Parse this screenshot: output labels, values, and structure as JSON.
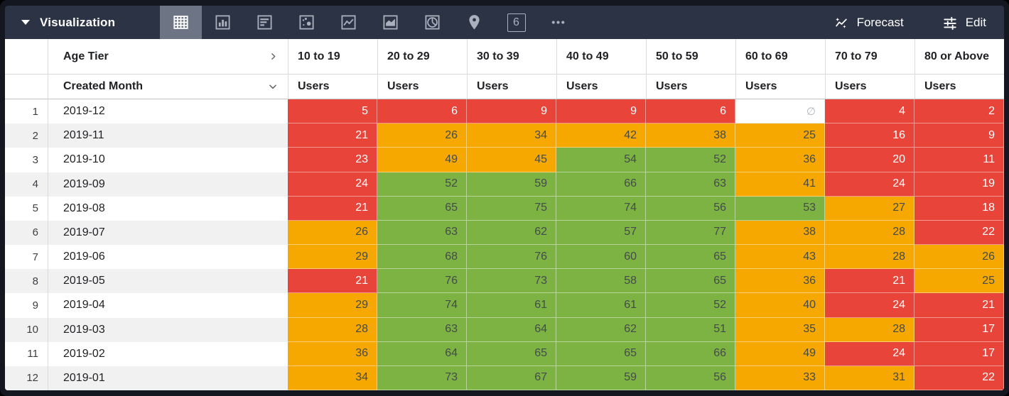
{
  "toolbar": {
    "title": "Visualization",
    "forecast_label": "Forecast",
    "edit_label": "Edit",
    "tabs": [
      {
        "icon": "table-chart",
        "selected": true
      },
      {
        "icon": "bar-chart",
        "selected": false
      },
      {
        "icon": "horizontal-bar-chart",
        "selected": false
      },
      {
        "icon": "scatter-chart",
        "selected": false
      },
      {
        "icon": "line-chart",
        "selected": false
      },
      {
        "icon": "area-chart",
        "selected": false
      },
      {
        "icon": "pie-chart",
        "selected": false
      },
      {
        "icon": "map-pin",
        "selected": false
      },
      {
        "icon": "single-value",
        "selected": false,
        "label": "6"
      },
      {
        "icon": "more-options",
        "selected": false
      }
    ]
  },
  "table": {
    "column_dimension_label": "Age Tier",
    "row_dimension_label": "Created Month",
    "measure_label": "Users",
    "null_symbol": "∅",
    "age_tiers": [
      "10 to 19",
      "20 to 29",
      "30 to 39",
      "40 to 49",
      "50 to 59",
      "60 to 69",
      "70 to 79",
      "80 or Above"
    ],
    "rows": [
      {
        "num": 1,
        "month": "2019-12",
        "values": [
          5,
          6,
          9,
          9,
          6,
          null,
          4,
          2
        ],
        "colors": [
          "r",
          "r",
          "r",
          "r",
          "r",
          "n",
          "r",
          "r"
        ]
      },
      {
        "num": 2,
        "month": "2019-11",
        "values": [
          21,
          26,
          34,
          42,
          38,
          25,
          16,
          9
        ],
        "colors": [
          "r",
          "o",
          "o",
          "o",
          "o",
          "o",
          "r",
          "r"
        ]
      },
      {
        "num": 3,
        "month": "2019-10",
        "values": [
          23,
          49,
          45,
          54,
          52,
          36,
          20,
          11
        ],
        "colors": [
          "r",
          "o",
          "o",
          "g",
          "g",
          "o",
          "r",
          "r"
        ]
      },
      {
        "num": 4,
        "month": "2019-09",
        "values": [
          24,
          52,
          59,
          66,
          63,
          41,
          24,
          19
        ],
        "colors": [
          "r",
          "g",
          "g",
          "g",
          "g",
          "o",
          "r",
          "r"
        ]
      },
      {
        "num": 5,
        "month": "2019-08",
        "values": [
          21,
          65,
          75,
          74,
          56,
          53,
          27,
          18
        ],
        "colors": [
          "r",
          "g",
          "g",
          "g",
          "g",
          "g",
          "o",
          "r"
        ]
      },
      {
        "num": 6,
        "month": "2019-07",
        "values": [
          26,
          63,
          62,
          57,
          77,
          38,
          28,
          22
        ],
        "colors": [
          "o",
          "g",
          "g",
          "g",
          "g",
          "o",
          "o",
          "r"
        ]
      },
      {
        "num": 7,
        "month": "2019-06",
        "values": [
          29,
          68,
          76,
          60,
          65,
          43,
          28,
          26
        ],
        "colors": [
          "o",
          "g",
          "g",
          "g",
          "g",
          "o",
          "o",
          "o"
        ]
      },
      {
        "num": 8,
        "month": "2019-05",
        "values": [
          21,
          76,
          73,
          58,
          65,
          36,
          21,
          25
        ],
        "colors": [
          "r",
          "g",
          "g",
          "g",
          "g",
          "o",
          "r",
          "o"
        ]
      },
      {
        "num": 9,
        "month": "2019-04",
        "values": [
          29,
          74,
          61,
          61,
          52,
          40,
          24,
          21
        ],
        "colors": [
          "o",
          "g",
          "g",
          "g",
          "g",
          "o",
          "r",
          "r"
        ]
      },
      {
        "num": 10,
        "month": "2019-03",
        "values": [
          28,
          63,
          64,
          62,
          51,
          35,
          28,
          17
        ],
        "colors": [
          "o",
          "g",
          "g",
          "g",
          "g",
          "o",
          "o",
          "r"
        ]
      },
      {
        "num": 11,
        "month": "2019-02",
        "values": [
          36,
          64,
          65,
          65,
          66,
          49,
          24,
          17
        ],
        "colors": [
          "o",
          "g",
          "g",
          "g",
          "g",
          "o",
          "r",
          "r"
        ]
      },
      {
        "num": 12,
        "month": "2019-01",
        "values": [
          34,
          73,
          67,
          59,
          56,
          33,
          31,
          22
        ],
        "colors": [
          "o",
          "g",
          "g",
          "g",
          "g",
          "o",
          "o",
          "r"
        ]
      }
    ],
    "palette": {
      "r": {
        "bg": "#e8443a",
        "text": "#ffffff"
      },
      "o": {
        "bg": "#f6a800",
        "text": "#454a4d"
      },
      "g": {
        "bg": "#7cb342",
        "text": "#454a4d"
      },
      "n": {
        "bg": "#ffffff",
        "text": "#b1b6bb"
      }
    }
  }
}
